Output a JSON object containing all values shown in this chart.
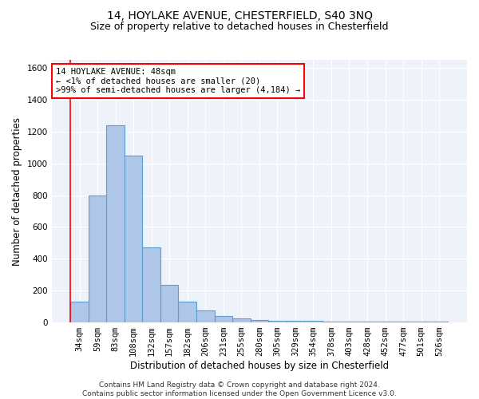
{
  "title1": "14, HOYLAKE AVENUE, CHESTERFIELD, S40 3NQ",
  "title2": "Size of property relative to detached houses in Chesterfield",
  "xlabel": "Distribution of detached houses by size in Chesterfield",
  "ylabel": "Number of detached properties",
  "categories": [
    "34sqm",
    "59sqm",
    "83sqm",
    "108sqm",
    "132sqm",
    "157sqm",
    "182sqm",
    "206sqm",
    "231sqm",
    "255sqm",
    "280sqm",
    "305sqm",
    "329sqm",
    "354sqm",
    "378sqm",
    "403sqm",
    "428sqm",
    "452sqm",
    "477sqm",
    "501sqm",
    "526sqm"
  ],
  "values": [
    130,
    800,
    1240,
    1050,
    470,
    235,
    130,
    75,
    40,
    25,
    15,
    10,
    10,
    10,
    5,
    5,
    5,
    5,
    5,
    5,
    5
  ],
  "bar_color": "#aec6e8",
  "bar_edge_color": "#5a9fd4",
  "bar_linewidth": 0.8,
  "annotation_text": "14 HOYLAKE AVENUE: 48sqm\n← <1% of detached houses are smaller (20)\n>99% of semi-detached houses are larger (4,184) →",
  "annotation_box_color": "white",
  "annotation_box_edge": "red",
  "ylim": [
    0,
    1650
  ],
  "yticks": [
    0,
    200,
    400,
    600,
    800,
    1000,
    1200,
    1400,
    1600
  ],
  "bg_color": "#eef3fb",
  "grid_color": "white",
  "footer": "Contains HM Land Registry data © Crown copyright and database right 2024.\nContains public sector information licensed under the Open Government Licence v3.0.",
  "title1_fontsize": 10,
  "title2_fontsize": 9,
  "xlabel_fontsize": 8.5,
  "ylabel_fontsize": 8.5,
  "tick_fontsize": 7.5,
  "annotation_fontsize": 7.5,
  "footer_fontsize": 6.5
}
